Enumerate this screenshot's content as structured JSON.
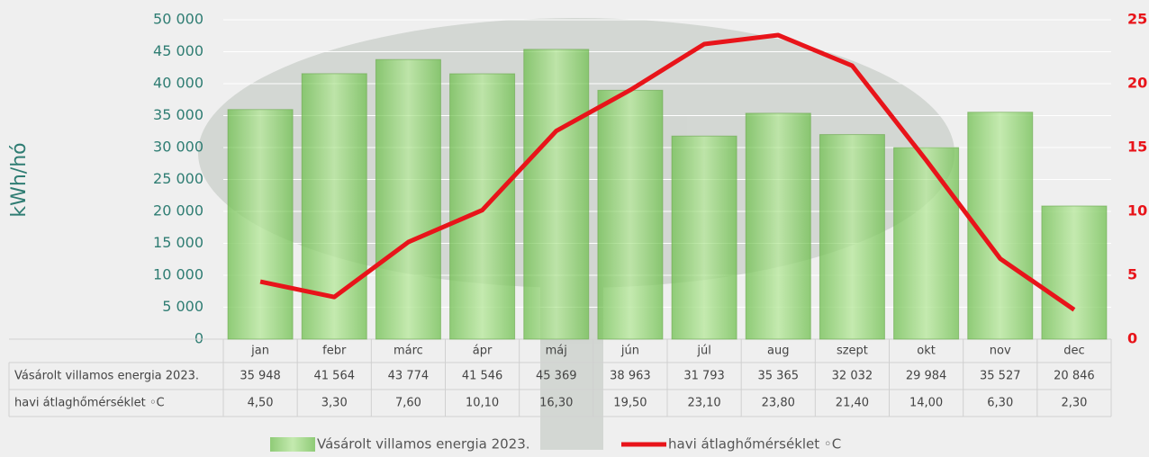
{
  "chart_data": {
    "type": "bar-line",
    "y_label": "kWh/hó",
    "categories": [
      "jan",
      "febr",
      "márc",
      "ápr",
      "máj",
      "jún",
      "júl",
      "aug",
      "szept",
      "okt",
      "nov",
      "dec"
    ],
    "series": [
      {
        "name": "Vásárolt villamos energia 2023.",
        "type": "bar",
        "color": "#8fd46a",
        "values": [
          35948,
          41564,
          43774,
          41546,
          45369,
          38963,
          31793,
          35365,
          32032,
          29984,
          35527,
          20846
        ],
        "value_labels": [
          "35 948",
          "41 564",
          "43 774",
          "41 546",
          "45 369",
          "38 963",
          "31 793",
          "35 365",
          "32 032",
          "29 984",
          "35 527",
          "20 846"
        ]
      },
      {
        "name": "havi átlaghőmérséklet ◦C",
        "type": "line",
        "axis": "y2",
        "color": "#e8141a",
        "values": [
          4.5,
          3.3,
          7.6,
          10.1,
          16.3,
          19.5,
          23.1,
          23.8,
          21.4,
          14.0,
          6.3,
          2.3
        ],
        "value_labels": [
          "4,50",
          "3,30",
          "7,60",
          "10,10",
          "16,30",
          "19,50",
          "23,10",
          "23,80",
          "21,40",
          "14,00",
          "6,30",
          "2,30"
        ]
      }
    ],
    "ylim": [
      0,
      50000
    ],
    "yticks": [
      0,
      {
        "value": 5000,
        "label": "5 000"
      },
      {
        "value": 10000,
        "label": "10 000"
      },
      {
        "value": 15000,
        "label": "15 000"
      },
      {
        "value": 20000,
        "label": "20 000"
      },
      {
        "value": 25000,
        "label": "25 000"
      },
      {
        "value": 30000,
        "label": "30 000"
      },
      {
        "value": 35000,
        "label": "35 000"
      },
      {
        "value": 40000,
        "label": "40 000"
      },
      {
        "value": 45000,
        "label": "45 000"
      },
      {
        "value": 50000,
        "label": "50 000"
      }
    ],
    "y2lim": [
      0,
      25
    ],
    "y2ticks": [
      0,
      5,
      10,
      15,
      20,
      25
    ],
    "grid": true
  }
}
